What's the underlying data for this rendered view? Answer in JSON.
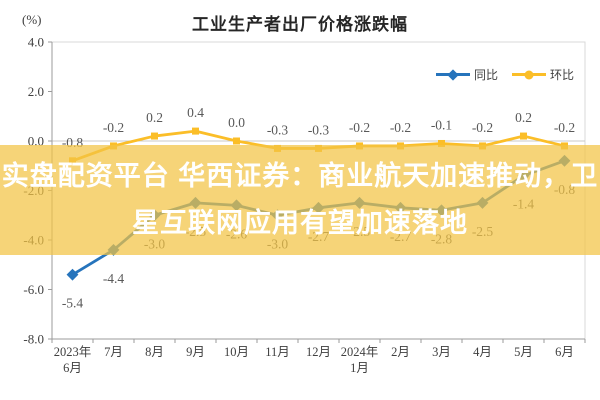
{
  "title": "工业生产者出厂价格涨跌幅",
  "y_unit_label": "(%)",
  "legend": {
    "series1": "同比",
    "series2": "环比"
  },
  "overlay_banner": {
    "line1": "实盘配资平台 华西证券：商业航天加速推动，卫",
    "line2": "星互联网应用有望加速落地",
    "text_color": "#ffffff",
    "background_color": "rgba(243,195,68,0.72)"
  },
  "colors": {
    "tongbi_blue": "#2674BC",
    "huanbi_yellow": "#FBBE28",
    "plot_border": "#d9d9d9",
    "axis_line": "#9b9b9b",
    "zero_line": "#c9c9c9",
    "data_label": "#595959",
    "tick_text": "#404040"
  },
  "chart_data": {
    "type": "line",
    "title": "工业生产者出厂价格涨跌幅",
    "ylabel": "(%)",
    "ylim": [
      -8.0,
      4.0
    ],
    "y_ticks": [
      4.0,
      2.0,
      0.0,
      -2.0,
      -4.0,
      -6.0,
      -8.0
    ],
    "x_tick_labels": [
      [
        "2023年",
        "6月"
      ],
      [
        "7月"
      ],
      [
        "8月"
      ],
      [
        "9月"
      ],
      [
        "10月"
      ],
      [
        "11月"
      ],
      [
        "12月"
      ],
      [
        "2024年",
        "1月"
      ],
      [
        "2月"
      ],
      [
        "3月"
      ],
      [
        "4月"
      ],
      [
        "5月"
      ],
      [
        "6月"
      ]
    ],
    "grid": false,
    "legend_position": "top-right",
    "series": [
      {
        "name": "同比",
        "color": "#2674BC",
        "marker": "diamond",
        "label_side": "below",
        "values": [
          -5.4,
          -4.4,
          -3.0,
          -2.5,
          -2.6,
          -3.0,
          -2.7,
          -2.5,
          -2.7,
          -2.8,
          -2.5,
          -1.4,
          -0.8
        ]
      },
      {
        "name": "环比",
        "color": "#FBBE28",
        "marker": "square",
        "label_side": "above",
        "values": [
          -0.8,
          -0.2,
          0.2,
          0.4,
          0.0,
          -0.3,
          -0.3,
          -0.2,
          -0.2,
          -0.1,
          -0.2,
          0.2,
          -0.2
        ]
      }
    ]
  }
}
